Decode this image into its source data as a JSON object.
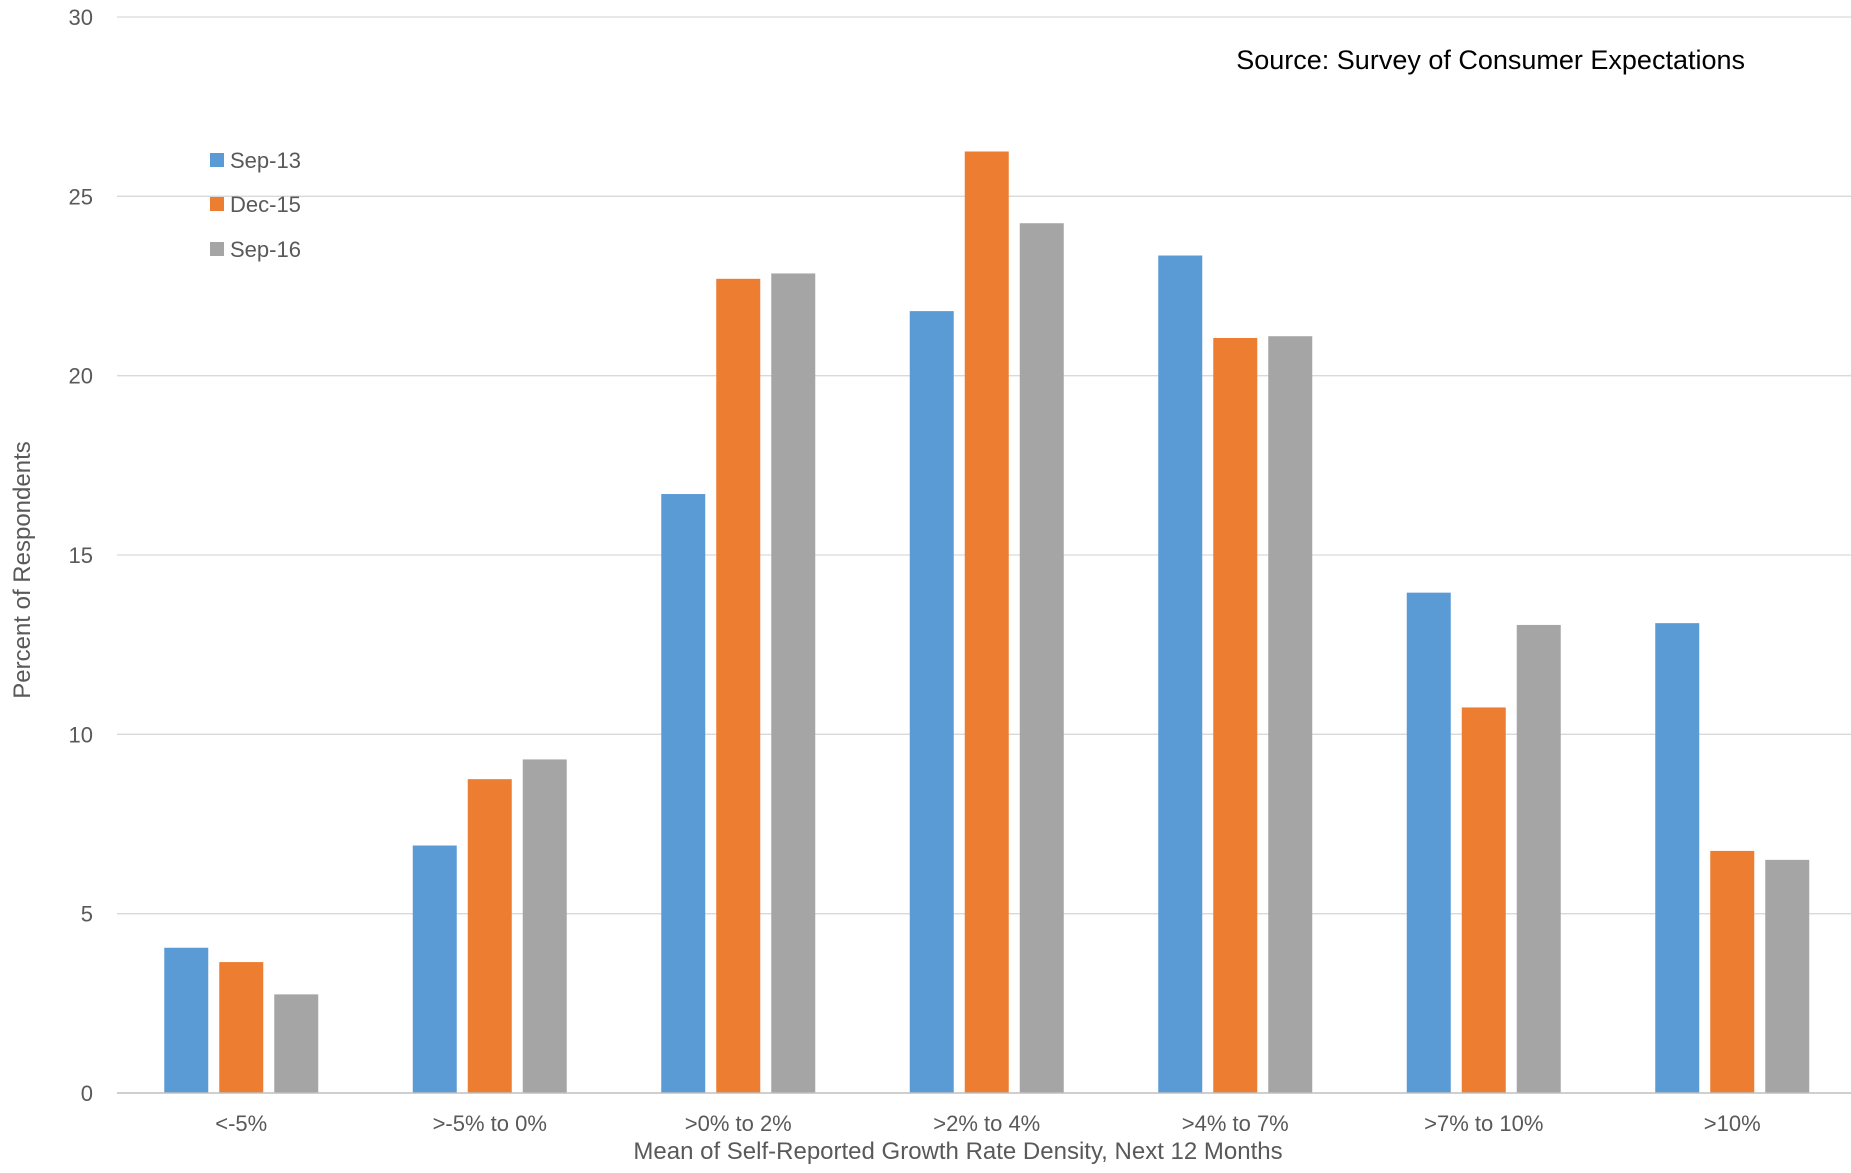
{
  "chart_data": {
    "type": "bar",
    "title": "",
    "annotation": "Source: Survey of Consumer Expectations",
    "xlabel": "Mean of Self-Reported Growth Rate Density, Next 12 Months",
    "ylabel": "Percent of Respondents",
    "ylim": [
      0,
      30
    ],
    "yticks": [
      "0",
      "5",
      "10",
      "15",
      "20",
      "25",
      "30"
    ],
    "grid": true,
    "legend_position": "top-left",
    "categories": [
      "<-5%",
      ">-5% to 0%",
      ">0% to 2%",
      ">2% to 4%",
      ">4% to 7%",
      ">7% to 10%",
      ">10%"
    ],
    "series": [
      {
        "name": "Sep-13",
        "color": "#5B9BD5",
        "values": [
          4.05,
          6.9,
          16.7,
          21.8,
          23.35,
          13.95,
          13.1
        ]
      },
      {
        "name": "Dec-15",
        "color": "#ED7D31",
        "values": [
          3.65,
          8.75,
          22.7,
          26.25,
          21.05,
          10.75,
          6.75
        ]
      },
      {
        "name": "Sep-16",
        "color": "#A5A5A5",
        "values": [
          2.75,
          9.3,
          22.85,
          24.25,
          21.1,
          13.05,
          6.5
        ]
      }
    ]
  }
}
